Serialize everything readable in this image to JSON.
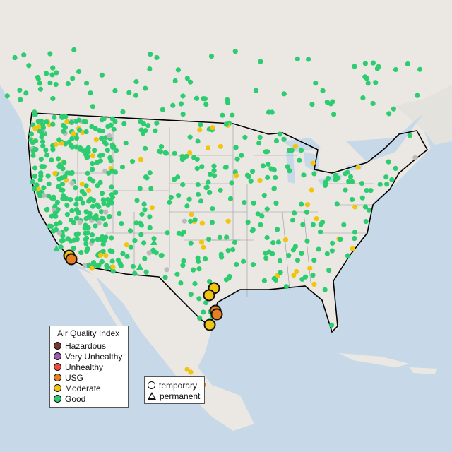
{
  "legend": {
    "title": "Air Quality Index",
    "categories": [
      {
        "label": "Hazardous",
        "color": "#7e3431"
      },
      {
        "label": "Very Unhealthy",
        "color": "#9b59b6"
      },
      {
        "label": "Unhealthy",
        "color": "#e74c3c"
      },
      {
        "label": "USG",
        "color": "#e67e22"
      },
      {
        "label": "Moderate",
        "color": "#f1c40f"
      },
      {
        "label": "Good",
        "color": "#2ecc71"
      }
    ]
  },
  "monitor_legend": {
    "temporary": "temporary",
    "permanent": "permanent"
  },
  "colors": {
    "ocean": "#c7d9e8",
    "land": "#ebe8e3",
    "border": "#000000",
    "no_data": "#bbbbbb"
  }
}
